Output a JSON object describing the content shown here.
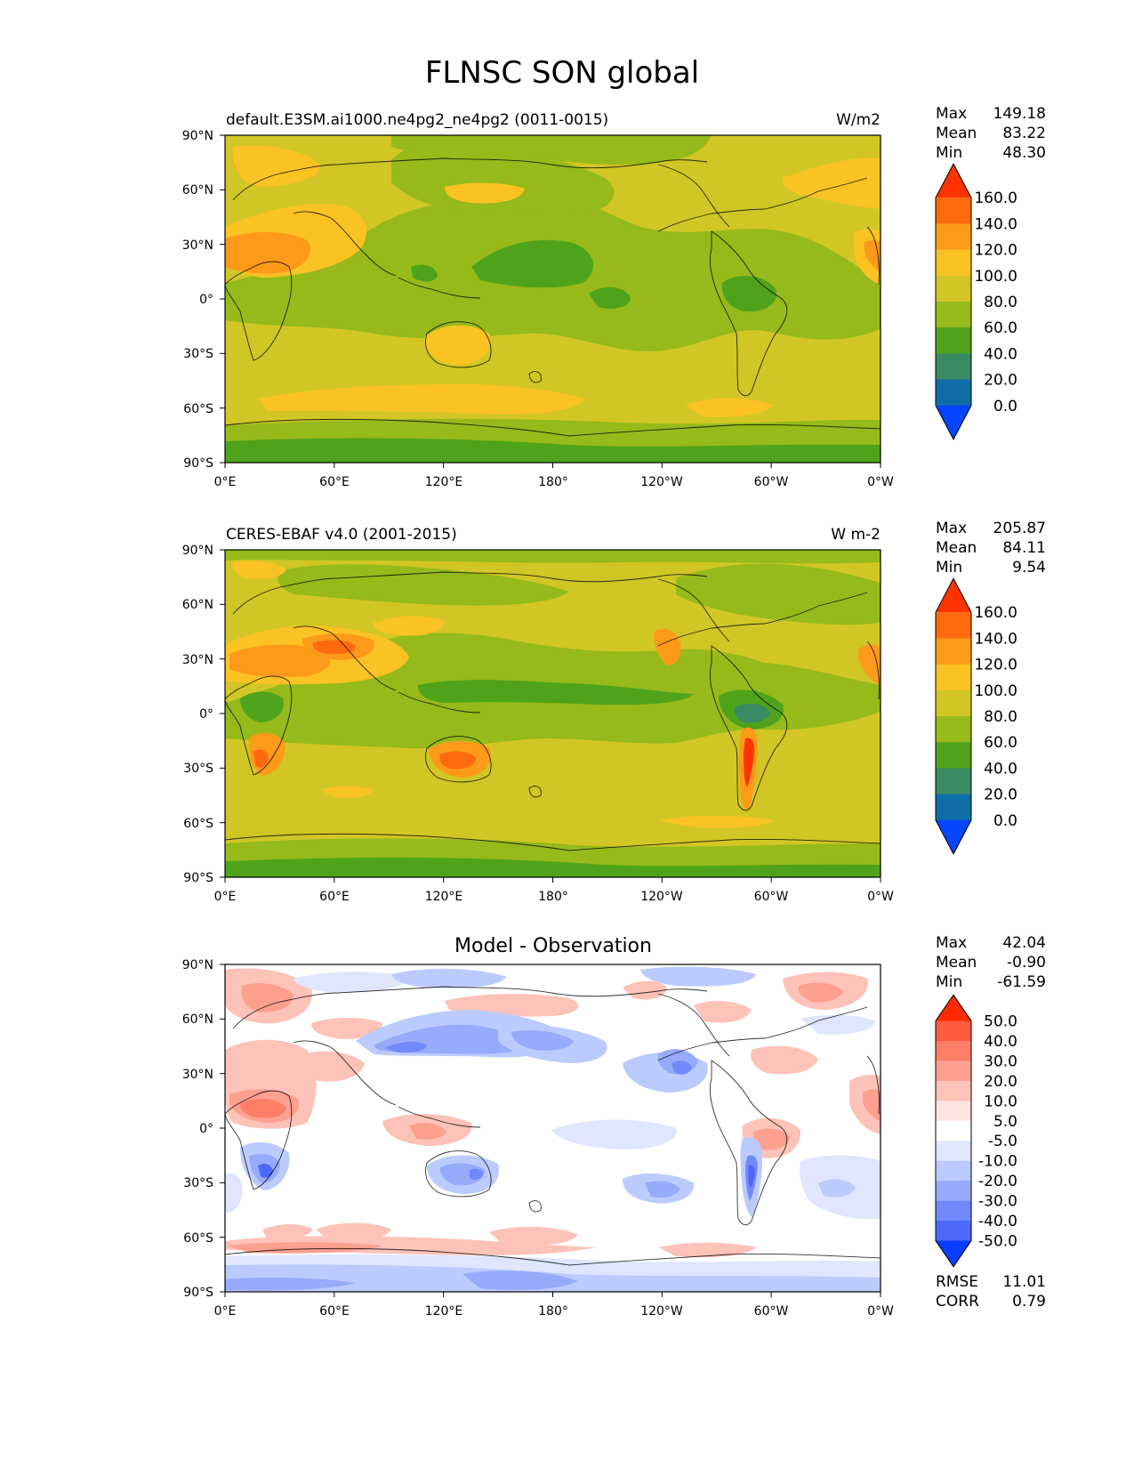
{
  "figure": {
    "title": "FLNSC SON global"
  },
  "axes": {
    "lat_ticks": [
      "90°N",
      "60°N",
      "30°N",
      "0°",
      "30°S",
      "60°S",
      "90°S"
    ],
    "lon_ticks": [
      "0°E",
      "60°E",
      "120°E",
      "180°",
      "120°W",
      "60°W",
      "0°W"
    ]
  },
  "panels": [
    {
      "id": "model",
      "title_left": "default.E3SM.ai1000.ne4pg2_ne4pg2 (0011-0015)",
      "title_center": "",
      "units": "W/m2",
      "stats": [
        {
          "label": "Max",
          "value": "149.18"
        },
        {
          "label": "Mean",
          "value": "83.22"
        },
        {
          "label": "Min",
          "value": "48.30"
        }
      ],
      "colorbar": {
        "labels": [
          "160.0",
          "140.0",
          "120.0",
          "100.0",
          "80.0",
          "60.0",
          "40.0",
          "20.0",
          "0.0"
        ],
        "colors": [
          "#ff3300",
          "#ff6a0f",
          "#fd9a1a",
          "#fbc223",
          "#d1c625",
          "#95ba1a",
          "#4fa31a",
          "#3a8a63",
          "#0f6ea8",
          "#0545ff"
        ]
      }
    },
    {
      "id": "obs",
      "title_left": "CERES-EBAF v4.0 (2001-2015)",
      "title_center": "",
      "units": "W m-2",
      "stats": [
        {
          "label": "Max",
          "value": "205.87"
        },
        {
          "label": "Mean",
          "value": "84.11"
        },
        {
          "label": "Min",
          "value": "9.54"
        }
      ],
      "colorbar": {
        "labels": [
          "160.0",
          "140.0",
          "120.0",
          "100.0",
          "80.0",
          "60.0",
          "40.0",
          "20.0",
          "0.0"
        ],
        "colors": [
          "#ff3300",
          "#ff6a0f",
          "#fd9a1a",
          "#fbc223",
          "#d1c625",
          "#95ba1a",
          "#4fa31a",
          "#3a8a63",
          "#0f6ea8",
          "#0545ff"
        ]
      }
    },
    {
      "id": "diff",
      "title_left": "",
      "title_center": "Model - Observation",
      "units": "",
      "stats": [
        {
          "label": "Max",
          "value": "42.04"
        },
        {
          "label": "Mean",
          "value": "-0.90"
        },
        {
          "label": "Min",
          "value": "-61.59"
        }
      ],
      "bottom_stats": [
        {
          "label": "RMSE",
          "value": "11.01"
        },
        {
          "label": "CORR",
          "value": "0.79"
        }
      ],
      "colorbar": {
        "labels": [
          "50.0",
          "40.0",
          "30.0",
          "20.0",
          "10.0",
          "5.0",
          "-5.0",
          "-10.0",
          "-20.0",
          "-30.0",
          "-40.0",
          "-50.0"
        ],
        "colors": [
          "#ff2a00",
          "#fe5a3d",
          "#fd7e66",
          "#fda08f",
          "#fdc2b8",
          "#fee4df",
          "#ffffff",
          "#dfe6fe",
          "#bccbfd",
          "#97aafc",
          "#7289fa",
          "#4d68f9",
          "#0a3dff"
        ]
      }
    }
  ]
}
